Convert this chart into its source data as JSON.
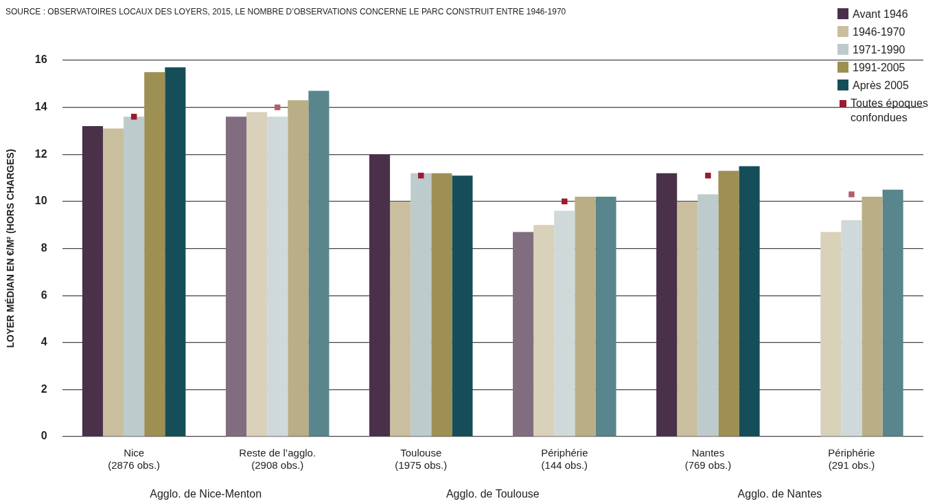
{
  "chart_data": {
    "type": "bar",
    "subtitle": "SOURCE : OBSERVATOIRES LOCAUX DES LOYERS, 2015, LE NOMBRE D’OBSERVATIONS CONCERNE LE PARC CONSTRUIT ENTRE 1946-1970",
    "ylabel": "LOYER MÉDIAN EN €/M² (HORS CHARGES)",
    "categories": [
      "Nice\n(2876 obs.)",
      "Reste de l’agglo.\n(2908 obs.)",
      "Toulouse\n(1975 obs.)",
      "Périphérie\n(144 obs.)",
      "Nantes\n(769 obs.)",
      "Périphérie\n(291 obs.)"
    ],
    "annotations": [
      "Agglo. de Nice-Menton",
      "Agglo. de Toulouse",
      "Agglo. de Nantes"
    ],
    "series": [
      {
        "name": "Avant 1946",
        "color": "#4a3049",
        "colors": [
          "#4a3049",
          "#806e80",
          "#4a3049",
          "#806e80",
          "#4a3049",
          "#806e80"
        ],
        "values": [
          13.2,
          13.6,
          12.0,
          8.7,
          11.2,
          null
        ]
      },
      {
        "name": "1946-1970",
        "color": "#c9bf9f",
        "colors": [
          "#c9bf9f",
          "#d9d1b9",
          "#c9bf9f",
          "#d9d1b9",
          "#c9bf9f",
          "#d9d1b9"
        ],
        "values": [
          13.1,
          13.8,
          10.0,
          9.0,
          10.0,
          8.7
        ]
      },
      {
        "name": "1971-1990",
        "color": "#bdcbcc",
        "colors": [
          "#bdcbcc",
          "#d0d9da",
          "#bdcbcc",
          "#d0d9da",
          "#bdcbcc",
          "#d0d9da"
        ],
        "values": [
          13.6,
          13.6,
          11.2,
          9.6,
          10.3,
          9.2
        ]
      },
      {
        "name": "1991-2005",
        "color": "#9e8f53",
        "colors": [
          "#9e8f53",
          "#baae86",
          "#9e8f53",
          "#baae86",
          "#9e8f53",
          "#baae86"
        ],
        "values": [
          15.5,
          14.3,
          11.2,
          10.2,
          11.3,
          10.2
        ]
      },
      {
        "name": "Après 2005",
        "color": "#154e58",
        "colors": [
          "#154e58",
          "#59858c",
          "#154e58",
          "#59858c",
          "#154e58",
          "#59858c"
        ],
        "values": [
          15.7,
          14.7,
          11.1,
          10.2,
          11.5,
          10.5
        ]
      },
      {
        "name": "Toutes époques confondues",
        "type": "scatter",
        "marker": "square",
        "color": "#9b1b30",
        "colors": [
          "#9b1b30",
          "#b55e6c",
          "#9b1b30",
          "#9b1b30",
          "#9b1b30",
          "#b55e6c"
        ],
        "x": [
          "Nice\n(2876 obs.)",
          "Reste de l’agglo.\n(2908 obs.)",
          "Toulouse\n(1975 obs.)",
          "Périphérie\n(144 obs.)",
          "Nantes\n(769 obs.)",
          "Périphérie\n(291 obs.)"
        ],
        "values": [
          13.6,
          14.0,
          11.1,
          10.0,
          11.1,
          10.3
        ]
      }
    ],
    "ylim": [
      0,
      16
    ],
    "yticks": [
      0,
      2,
      4,
      6,
      8,
      10,
      12,
      14,
      16
    ],
    "grid": "y",
    "legend": "top right"
  }
}
